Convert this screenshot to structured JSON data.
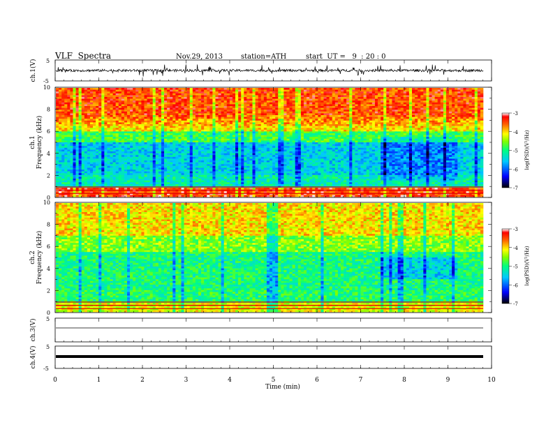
{
  "header": {
    "title": "VLF  Spectra",
    "date": "Nov.29, 2013",
    "station": "station=ATH",
    "start": "start  UT =   9  : 20 : 0"
  },
  "chart_data": [
    {
      "type": "line",
      "panel": "ch1-waveform",
      "ylabel": "ch.1(V)",
      "ylim": [
        -5,
        5
      ],
      "yticks": [
        "5",
        "-5"
      ],
      "xlim": [
        0,
        10
      ],
      "description_level": "noisy waveform around 0 V, spikes up to about ±3 V"
    },
    {
      "type": "heatmap",
      "panel": "ch1-spectrogram",
      "ylabel_lines": [
        "ch.1",
        "Frequency  (kHz)"
      ],
      "ylim": [
        0,
        10
      ],
      "yticks": [
        "0",
        "2",
        "4",
        "6",
        "8",
        "10"
      ],
      "xlim": [
        0,
        10
      ],
      "colorbar": {
        "label": "log(PSD)(V²/Hz)",
        "ticks": [
          "-3",
          "-4",
          "-5",
          "-6",
          "-7"
        ],
        "range": [
          -7,
          -3
        ]
      }
    },
    {
      "type": "heatmap",
      "panel": "ch2-spectrogram",
      "ylabel_lines": [
        "ch.2",
        "Frequency  (kHz)"
      ],
      "ylim": [
        0,
        10
      ],
      "yticks": [
        "0",
        "2",
        "4",
        "6",
        "8",
        "10"
      ],
      "xlim": [
        0,
        10
      ],
      "colorbar": {
        "label": "log(PSD)(V²/Hz)",
        "ticks": [
          "-3",
          "-4",
          "-5",
          "-6",
          "-7"
        ],
        "range": [
          -7,
          -3
        ]
      }
    },
    {
      "type": "line",
      "panel": "ch3-waveform",
      "ylabel": "ch.3(V)",
      "ylim": [
        -5,
        5
      ],
      "yticks": [
        "5"
      ],
      "xlim": [
        0,
        10
      ],
      "description_level": "flat line near -1 V"
    },
    {
      "type": "line",
      "panel": "ch4-waveform",
      "ylabel": "ch.4(V)",
      "ylim": [
        -5,
        5
      ],
      "yticks": [
        "5",
        "-5"
      ],
      "xlim": [
        0,
        10
      ],
      "description_level": "thick flat band near 0 V"
    }
  ],
  "xaxis": {
    "label": "Time  (min)",
    "ticks": [
      "0",
      "1",
      "2",
      "3",
      "4",
      "5",
      "6",
      "7",
      "8",
      "9",
      "10"
    ]
  },
  "colors": {
    "spectrum_high": "#ff2a00",
    "spectrum_mid": "#ffff00",
    "spectrum_low": "#00ff80",
    "spectrum_floor": "#0000c0"
  }
}
